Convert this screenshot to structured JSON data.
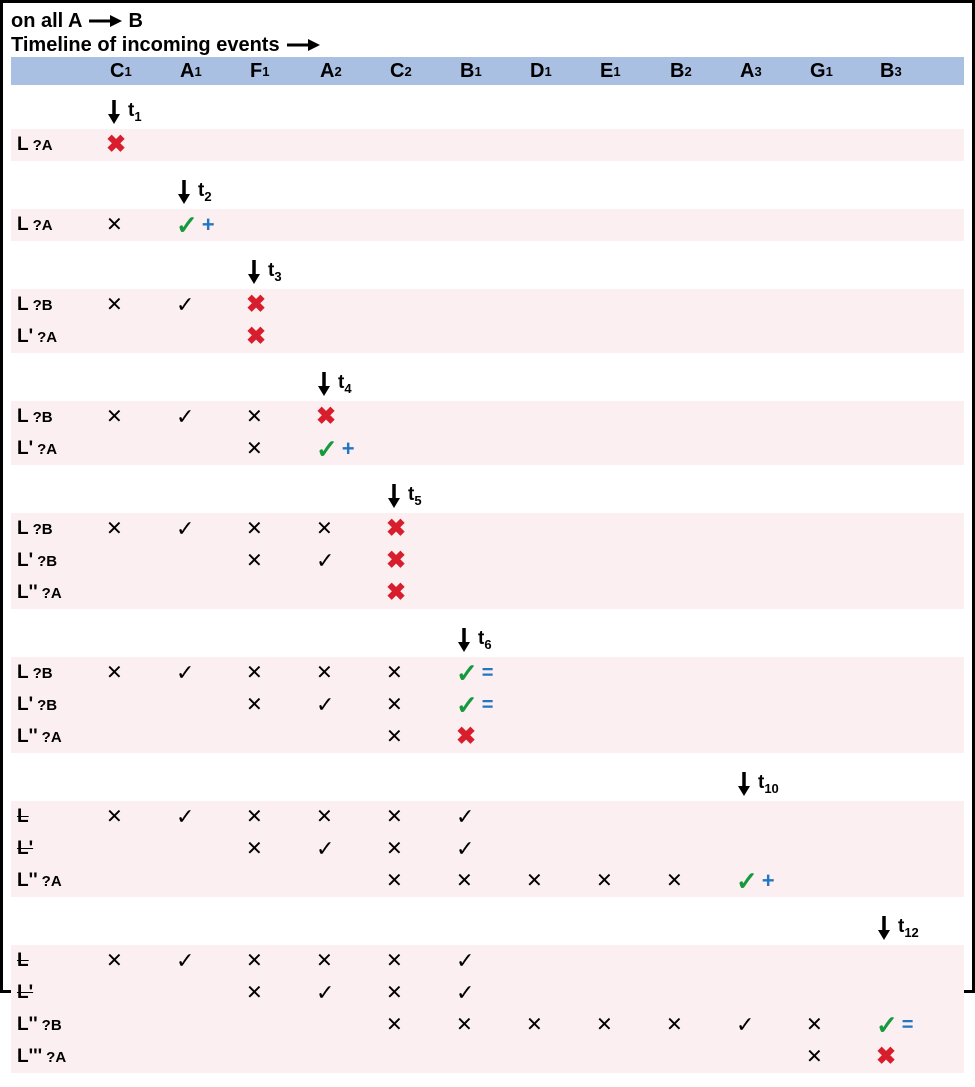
{
  "header": {
    "line1_pre": "on all A",
    "line1_post": "B",
    "line2": "Timeline of incoming events"
  },
  "columns": [
    {
      "letter": "C",
      "sub": "1"
    },
    {
      "letter": "A",
      "sub": "1"
    },
    {
      "letter": "F",
      "sub": "1"
    },
    {
      "letter": "A",
      "sub": "2"
    },
    {
      "letter": "C",
      "sub": "2"
    },
    {
      "letter": "B",
      "sub": "1"
    },
    {
      "letter": "D",
      "sub": "1"
    },
    {
      "letter": "E",
      "sub": "1"
    },
    {
      "letter": "B",
      "sub": "2"
    },
    {
      "letter": "A",
      "sub": "3"
    },
    {
      "letter": "G",
      "sub": "1"
    },
    {
      "letter": "B",
      "sub": "3"
    }
  ],
  "blocks": [
    {
      "arrow_col": 0,
      "t_label": "t",
      "t_sub": "1",
      "rows": [
        {
          "label": "L",
          "q": "?A",
          "strike": false,
          "cells": {
            "0": "redx"
          }
        }
      ]
    },
    {
      "arrow_col": 1,
      "t_label": "t",
      "t_sub": "2",
      "rows": [
        {
          "label": "L",
          "q": "?A",
          "strike": false,
          "cells": {
            "0": "bx",
            "1": "gcheck+"
          }
        }
      ]
    },
    {
      "arrow_col": 2,
      "t_label": "t",
      "t_sub": "3",
      "rows": [
        {
          "label": "L",
          "q": "?B",
          "strike": false,
          "cells": {
            "0": "bx",
            "1": "bcheck",
            "2": "redx"
          }
        },
        {
          "label": "L'",
          "q": "?A",
          "strike": false,
          "cells": {
            "2": "redx"
          }
        }
      ]
    },
    {
      "arrow_col": 3,
      "t_label": "t",
      "t_sub": "4",
      "rows": [
        {
          "label": "L",
          "q": "?B",
          "strike": false,
          "cells": {
            "0": "bx",
            "1": "bcheck",
            "2": "bx",
            "3": "redx"
          }
        },
        {
          "label": "L'",
          "q": "?A",
          "strike": false,
          "cells": {
            "2": "bx",
            "3": "gcheck+"
          }
        }
      ]
    },
    {
      "arrow_col": 4,
      "t_label": "t",
      "t_sub": "5",
      "rows": [
        {
          "label": "L",
          "q": "?B",
          "strike": false,
          "cells": {
            "0": "bx",
            "1": "bcheck",
            "2": "bx",
            "3": "bx",
            "4": "redx"
          }
        },
        {
          "label": "L'",
          "q": "?B",
          "strike": false,
          "cells": {
            "2": "bx",
            "3": "bcheck",
            "4": "redx"
          }
        },
        {
          "label": "L''",
          "q": "?A",
          "strike": false,
          "cells": {
            "4": "redx"
          }
        }
      ]
    },
    {
      "arrow_col": 5,
      "t_label": "t",
      "t_sub": "6",
      "rows": [
        {
          "label": "L",
          "q": "?B",
          "strike": false,
          "cells": {
            "0": "bx",
            "1": "bcheck",
            "2": "bx",
            "3": "bx",
            "4": "bx",
            "5": "gcheck="
          }
        },
        {
          "label": "L'",
          "q": "?B",
          "strike": false,
          "cells": {
            "2": "bx",
            "3": "bcheck",
            "4": "bx",
            "5": "gcheck="
          }
        },
        {
          "label": "L''",
          "q": "?A",
          "strike": false,
          "cells": {
            "4": "bx",
            "5": "redx"
          }
        }
      ]
    },
    {
      "arrow_col": 9,
      "t_label": "t",
      "t_sub": "10",
      "rows": [
        {
          "label": "L",
          "q": "",
          "strike": true,
          "cells": {
            "0": "bx",
            "1": "bcheck",
            "2": "bx",
            "3": "bx",
            "4": "bx",
            "5": "bcheck"
          }
        },
        {
          "label": "L'",
          "q": "",
          "strike": true,
          "cells": {
            "2": "bx",
            "3": "bcheck",
            "4": "bx",
            "5": "bcheck"
          }
        },
        {
          "label": "L''",
          "q": "?A",
          "strike": false,
          "cells": {
            "4": "bx",
            "5": "bx",
            "6": "bx",
            "7": "bx",
            "8": "bx",
            "9": "gcheck+"
          }
        }
      ]
    },
    {
      "arrow_col": 11,
      "t_label": "t",
      "t_sub": "12",
      "rows": [
        {
          "label": "L",
          "q": "",
          "strike": true,
          "cells": {
            "0": "bx",
            "1": "bcheck",
            "2": "bx",
            "3": "bx",
            "4": "bx",
            "5": "bcheck"
          }
        },
        {
          "label": "L'",
          "q": "",
          "strike": true,
          "cells": {
            "2": "bx",
            "3": "bcheck",
            "4": "bx",
            "5": "bcheck"
          }
        },
        {
          "label": "L''",
          "q": "?B",
          "strike": false,
          "cells": {
            "4": "bx",
            "5": "bx",
            "6": "bx",
            "7": "bx",
            "8": "bx",
            "9": "bcheck",
            "10": "bx",
            "11": "gcheck="
          }
        },
        {
          "label": "L'''",
          "q": "?A",
          "strike": false,
          "cells": {
            "10": "bx",
            "11": "redx"
          }
        }
      ]
    }
  ],
  "colors": {
    "header_band": "#a9c0e3",
    "stripe": "#fbeff2",
    "red": "#d81e2c",
    "green": "#159a3d",
    "blue": "#2576c0"
  },
  "symbols": {
    "redx": "✖",
    "bx": "✕",
    "bcheck": "✓",
    "gcheck": "✓",
    "plus": "+",
    "eq": "="
  }
}
